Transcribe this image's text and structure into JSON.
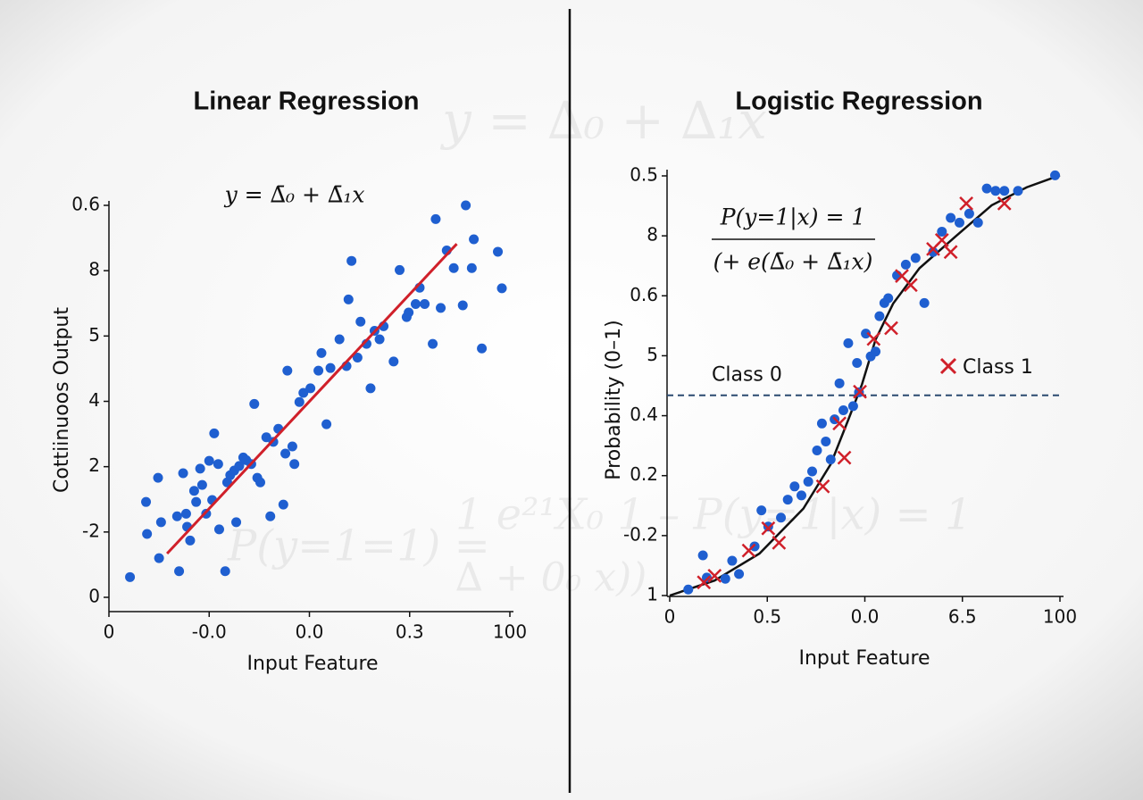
{
  "chart_data": [
    {
      "type": "scatter",
      "title": "Linear Regression",
      "x_label": "Input Feature",
      "y_label": "Cottiinuoos Output",
      "equation": "y = ∆̄₀ + ∆̄₁x",
      "xlim": [
        0,
        4
      ],
      "ylim": [
        0,
        6
      ],
      "xticks": [
        0,
        {
          "value": 1,
          "label": "-0.0"
        },
        {
          "value": 2,
          "label": "0.0"
        },
        {
          "value": 3,
          "label": "0.3"
        },
        {
          "value": 4,
          "label": "100"
        }
      ],
      "yticks": [
        0,
        {
          "value": 1,
          "label": "-2"
        },
        {
          "value": 2,
          "label": "2"
        },
        {
          "value": 3,
          "label": "4"
        },
        {
          "value": 4,
          "label": "5"
        },
        {
          "value": 5,
          "label": "8"
        },
        {
          "value": 6,
          "label": "0.6"
        }
      ],
      "series": [
        {
          "color": "#1f5fd0",
          "marker": "circle",
          "x": [
            0.21,
            0.38,
            0.37,
            0.49,
            0.5,
            0.52,
            0.68,
            0.7,
            0.74,
            0.77,
            0.78,
            0.81,
            0.85,
            0.87,
            0.91,
            0.93,
            0.97,
            1.0,
            1.03,
            1.05,
            1.09,
            1.1,
            1.16,
            1.18,
            1.21,
            1.25,
            1.27,
            1.3,
            1.34,
            1.37,
            1.42,
            1.45,
            1.48,
            1.51,
            1.57,
            1.61,
            1.64,
            1.69,
            1.74,
            1.76,
            1.78,
            1.83,
            1.85,
            1.9,
            1.94,
            2.01,
            2.09,
            2.12,
            2.17,
            2.21,
            2.3,
            2.37,
            2.39,
            2.42,
            2.48,
            2.51,
            2.57,
            2.61,
            2.65,
            2.7,
            2.74,
            2.84,
            2.9,
            2.97,
            2.99,
            3.06,
            3.1,
            3.15,
            3.23,
            3.26,
            3.31,
            3.37,
            3.44,
            3.53,
            3.56,
            3.62,
            3.64,
            3.72,
            3.88,
            3.92
          ],
          "values": [
            0.31,
            0.97,
            1.46,
            1.83,
            0.6,
            1.15,
            1.24,
            0.4,
            1.9,
            1.28,
            1.08,
            0.87,
            1.63,
            1.46,
            1.97,
            1.72,
            1.28,
            2.09,
            1.49,
            2.51,
            2.04,
            1.04,
            0.4,
            1.76,
            1.87,
            1.94,
            1.15,
            2.01,
            2.14,
            2.1,
            2.04,
            2.96,
            1.83,
            1.76,
            2.45,
            1.24,
            2.38,
            2.58,
            1.42,
            2.2,
            3.47,
            2.31,
            2.04,
            2.99,
            3.13,
            3.2,
            3.47,
            3.74,
            2.65,
            3.51,
            3.95,
            3.54,
            4.56,
            5.15,
            3.67,
            4.22,
            3.88,
            3.2,
            4.08,
            3.95,
            4.15,
            3.61,
            5.01,
            4.29,
            4.36,
            4.49,
            4.74,
            4.49,
            3.88,
            5.79,
            4.43,
            5.31,
            5.04,
            4.47,
            6.0,
            5.04,
            5.48,
            3.81,
            5.29,
            4.73
          ]
        }
      ],
      "fit": {
        "color": "#d0202a",
        "x": [
          0.58,
          3.47
        ],
        "values": [
          0.67,
          5.41
        ]
      }
    },
    {
      "type": "scatter",
      "title": "Logistic Regression",
      "x_label": "Input Feature",
      "y_label": "Probability (0–1)",
      "equation_numerator": "P(y=1|x) = 1",
      "equation_denominator": "(+ e(∆̄₀ + ∆̄₁x)",
      "xlim": [
        0,
        4
      ],
      "ylim": [
        0,
        7
      ],
      "xticks": [
        0,
        {
          "value": 1,
          "label": "0.5"
        },
        {
          "value": 2,
          "label": "0.0"
        },
        {
          "value": 3,
          "label": "6.5"
        },
        {
          "value": 4,
          "label": "100"
        }
      ],
      "yticks": [
        {
          "value": 0,
          "label": "1"
        },
        {
          "value": 1,
          "label": "-0.2"
        },
        {
          "value": 2,
          "label": "0.2"
        },
        {
          "value": 3,
          "label": "0.4"
        },
        {
          "value": 4,
          "label": "5"
        },
        {
          "value": 5,
          "label": "0.6"
        },
        {
          "value": 6,
          "label": "8"
        },
        {
          "value": 7,
          "label": "0.5"
        }
      ],
      "threshold": {
        "value": 3.34,
        "label": "Class 0",
        "color": "#2b4a70"
      },
      "series": [
        {
          "color": "#1f5fd0",
          "marker": "circle",
          "x": [
            0.19,
            0.34,
            0.38,
            0.57,
            0.64,
            0.71,
            0.87,
            0.94,
            1.01,
            1.14,
            1.21,
            1.28,
            1.35,
            1.42,
            1.46,
            1.51,
            1.56,
            1.6,
            1.65,
            1.69,
            1.74,
            1.78,
            1.83,
            1.88,
            1.92,
            1.94,
            2.01,
            2.06,
            2.11,
            2.15,
            2.2,
            2.24,
            2.33,
            2.42,
            2.52,
            2.61,
            2.7,
            2.79,
            2.88,
            2.97,
            3.07,
            3.16,
            3.25,
            3.34,
            3.43,
            3.57,
            3.95
          ],
          "values": [
            0.1,
            0.67,
            0.3,
            0.28,
            0.58,
            0.36,
            0.82,
            1.42,
            1.15,
            1.3,
            1.6,
            1.82,
            1.67,
            1.9,
            2.07,
            2.42,
            2.87,
            2.57,
            2.27,
            2.94,
            3.54,
            3.09,
            4.21,
            3.16,
            3.88,
            3.39,
            4.37,
            3.99,
            4.07,
            4.66,
            4.88,
            4.96,
            5.34,
            5.52,
            5.63,
            4.88,
            5.73,
            6.07,
            6.3,
            6.22,
            6.37,
            6.22,
            6.79,
            6.75,
            6.75,
            6.75,
            7.01
          ]
        },
        {
          "name": "Class 1",
          "color": "#d0202a",
          "marker": "x",
          "x": [
            0.35,
            0.46,
            0.81,
            1.01,
            1.12,
            1.57,
            1.74,
            1.79,
            1.95,
            2.09,
            2.27,
            2.38,
            2.47,
            2.7,
            2.79,
            2.88,
            3.04,
            3.43
          ],
          "values": [
            0.22,
            0.33,
            0.75,
            1.12,
            0.88,
            1.82,
            2.87,
            2.3,
            3.4,
            4.28,
            4.46,
            5.33,
            5.18,
            5.78,
            5.93,
            5.73,
            6.54,
            6.54
          ]
        }
      ],
      "curve": {
        "color": "#111111",
        "x": [
          0,
          0.46,
          0.92,
          1.37,
          1.65,
          1.83,
          1.97,
          2.11,
          2.29,
          2.56,
          2.93,
          3.3,
          3.66,
          4
        ],
        "values": [
          0,
          0.25,
          0.7,
          1.45,
          2.19,
          2.93,
          3.52,
          4.27,
          4.87,
          5.46,
          5.99,
          6.51,
          6.81,
          7.01
        ]
      }
    }
  ],
  "watermarks": [
    "y = ∆₀ + ∆₁x",
    "P(y=1=1) = ",
    "1 e²¹X₀ 1 – P(y=1|x) = 1",
    "∆ + 0₀ x))"
  ]
}
